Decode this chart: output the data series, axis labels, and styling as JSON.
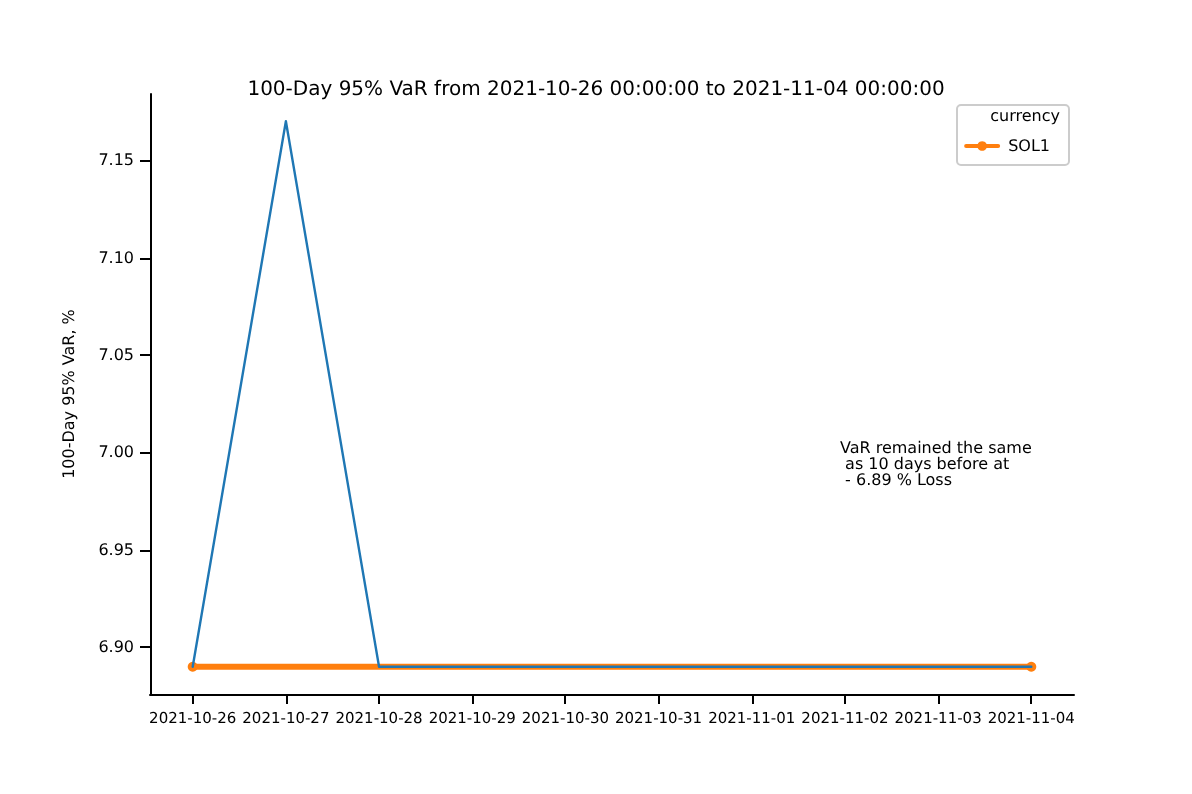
{
  "chart_data": {
    "type": "line",
    "title": "100-Day 95% VaR from 2021-10-26 00:00:00 to 2021-11-04 00:00:00",
    "ylabel": "100-Day 95% VaR, %",
    "legend_title": "currency",
    "legend": "top right",
    "grid": false,
    "x": [
      "2021-10-26",
      "2021-10-27",
      "2021-10-28",
      "2021-10-29",
      "2021-10-30",
      "2021-10-31",
      "2021-11-01",
      "2021-11-02",
      "2021-11-03",
      "2021-11-04"
    ],
    "series": [
      {
        "color": "#1f77b4",
        "marker": "none",
        "values": [
          6.89,
          7.17,
          6.89,
          6.89,
          6.89,
          6.89,
          6.89,
          6.89,
          6.89,
          6.89
        ]
      },
      {
        "name": "SOL1",
        "color": "#ff7f0e",
        "marker": "circle",
        "x": [
          "2021-10-26",
          "2021-11-04"
        ],
        "values": [
          6.89,
          6.89
        ]
      }
    ],
    "xlim": [
      "2021-10-25T13:00",
      "2021-11-04T11:00"
    ],
    "xticks": [
      "2021-10-26",
      "2021-10-27",
      "2021-10-28",
      "2021-10-29",
      "2021-10-30",
      "2021-10-31",
      "2021-11-01",
      "2021-11-02",
      "2021-11-03",
      "2021-11-04"
    ],
    "ylim": [
      6.876,
      7.184
    ],
    "yticks": [
      {
        "value": 6.9,
        "label": "6.90"
      },
      {
        "value": 6.95,
        "label": "6.95"
      },
      {
        "value": 7.0,
        "label": "7.00"
      },
      {
        "value": 7.05,
        "label": "7.05"
      },
      {
        "value": 7.1,
        "label": "7.10"
      },
      {
        "value": 7.15,
        "label": "7.15"
      }
    ],
    "annotations": [
      "VaR remained the same\n as 10 days before at\n - 6.89 % Loss"
    ]
  }
}
